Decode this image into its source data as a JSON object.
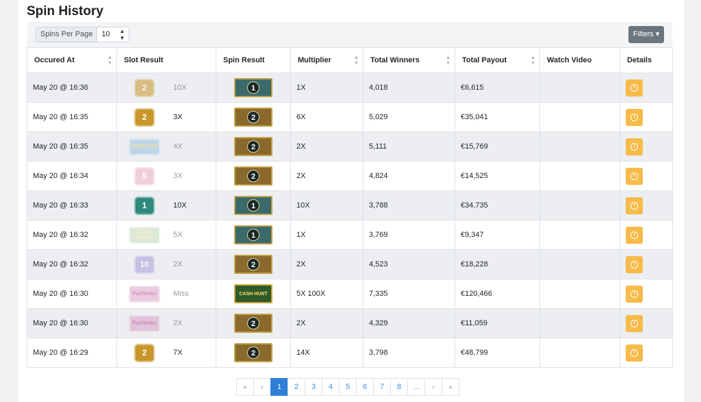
{
  "page": {
    "title": "Spin History"
  },
  "toolbar": {
    "per_page_label": "Spins Per Page",
    "per_page_value": "10",
    "filters_label": "Filters ▾"
  },
  "table": {
    "headers": [
      "Occured At",
      "Slot Result",
      "Spin Result",
      "Multiplier",
      "Total Winners",
      "Total Payout",
      "Watch Video",
      "Details"
    ],
    "rows": [
      {
        "time": "May 20 @ 16:36",
        "slot_text": "2",
        "slot_style": "gold",
        "slot_faded": true,
        "slot_mult": "10X",
        "spin": "1",
        "spin_color": "teal",
        "multiplier": "1X",
        "winners": "4,018",
        "payout": "€6,615"
      },
      {
        "time": "May 20 @ 16:35",
        "slot_text": "2",
        "slot_style": "gold",
        "slot_faded": false,
        "slot_mult": "3X",
        "spin": "2",
        "spin_color": "brown",
        "multiplier": "6X",
        "winners": "5,029",
        "payout": "€35,041"
      },
      {
        "time": "May 20 @ 16:35",
        "slot_text": "COIN FLIP",
        "slot_style": "coinflip",
        "slot_faded": true,
        "slot_mult": "4X",
        "spin": "2",
        "spin_color": "brown",
        "multiplier": "2X",
        "winners": "5,111",
        "payout": "€15,769"
      },
      {
        "time": "May 20 @ 16:34",
        "slot_text": "5",
        "slot_style": "pink",
        "slot_faded": true,
        "slot_mult": "3X",
        "spin": "2",
        "spin_color": "brown",
        "multiplier": "2X",
        "winners": "4,824",
        "payout": "€14,525"
      },
      {
        "time": "May 20 @ 16:33",
        "slot_text": "1",
        "slot_style": "teal",
        "slot_faded": false,
        "slot_mult": "10X",
        "spin": "1",
        "spin_color": "teal",
        "multiplier": "10X",
        "winners": "3,788",
        "payout": "€34,735"
      },
      {
        "time": "May 20 @ 16:32",
        "slot_text": "CASH HUNT",
        "slot_style": "cashhunt",
        "slot_faded": true,
        "slot_mult": "5X",
        "spin": "1",
        "spin_color": "teal",
        "multiplier": "1X",
        "winners": "3,769",
        "payout": "€9,347"
      },
      {
        "time": "May 20 @ 16:32",
        "slot_text": "10",
        "slot_style": "purple",
        "slot_faded": true,
        "slot_mult": "2X",
        "spin": "2",
        "spin_color": "brown",
        "multiplier": "2X",
        "winners": "4,523",
        "payout": "€18,228"
      },
      {
        "time": "May 20 @ 16:30",
        "slot_text": "Pachinko",
        "slot_style": "pachinko",
        "slot_faded": true,
        "slot_mult": "Miss",
        "spin": "CASH HUNT",
        "spin_color": "green",
        "multiplier": "5X 100X",
        "winners": "7,335",
        "payout": "€120,466"
      },
      {
        "time": "May 20 @ 16:30",
        "slot_text": "Pachinko",
        "slot_style": "pachinko",
        "slot_faded": true,
        "slot_mult": "2X",
        "spin": "2",
        "spin_color": "brown",
        "multiplier": "2X",
        "winners": "4,329",
        "payout": "€11,059"
      },
      {
        "time": "May 20 @ 16:29",
        "slot_text": "2",
        "slot_style": "gold",
        "slot_faded": false,
        "slot_mult": "7X",
        "spin": "2",
        "spin_color": "brown",
        "multiplier": "14X",
        "winners": "3,798",
        "payout": "€48,799"
      }
    ]
  },
  "pagination": {
    "items": [
      "«",
      "‹",
      "1",
      "2",
      "3",
      "4",
      "5",
      "6",
      "7",
      "8",
      "...",
      "›",
      "»"
    ],
    "active": "1"
  },
  "colors": {
    "gold": "#c9962a",
    "teal": "#2f8a7c",
    "pink": "#e7a8bd",
    "purple": "#a89bd8",
    "detail": "#f7bb4a",
    "accent": "#2f7fd8"
  }
}
